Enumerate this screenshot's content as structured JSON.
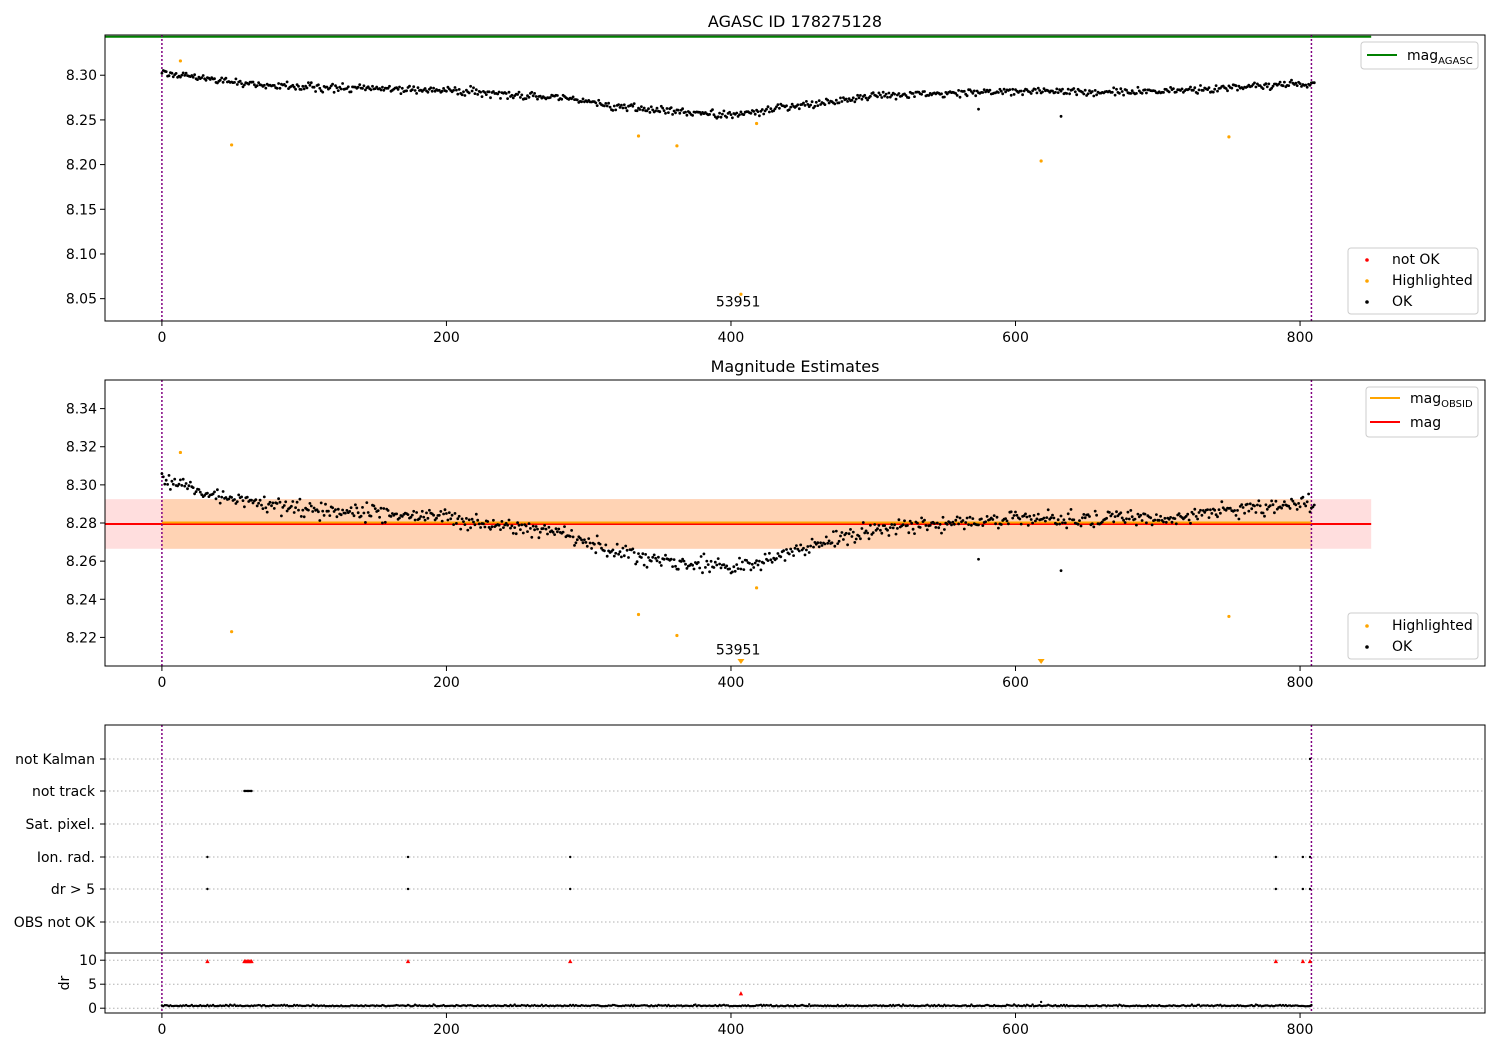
{
  "chart_data": [
    {
      "type": "scatter",
      "title": "AGASC ID 178275128",
      "xlim": [
        -40,
        930
      ],
      "ylim": [
        8.025,
        8.345
      ],
      "xticks": [
        0,
        200,
        400,
        600,
        800
      ],
      "yticks": [
        8.05,
        8.1,
        8.15,
        8.2,
        8.25,
        8.3
      ],
      "x_range": [
        0,
        810
      ],
      "mag_agasc": 8.343,
      "mag_agasc_span": [
        -40,
        850
      ],
      "obs_boundaries": [
        0,
        808
      ],
      "annotation": {
        "text": "53951",
        "x": 405,
        "y": 8.041
      },
      "legend_lines": [
        {
          "label": "mag",
          "sub": "AGASC",
          "color": "#008000"
        }
      ],
      "legend_points": [
        {
          "label": "not OK",
          "color": "#ff0000"
        },
        {
          "label": "Highlighted",
          "color": "#ffa500"
        },
        {
          "label": "OK",
          "color": "#000000"
        }
      ],
      "trend": [
        [
          0,
          8.303
        ],
        [
          50,
          8.292
        ],
        [
          100,
          8.287
        ],
        [
          200,
          8.283
        ],
        [
          280,
          8.275
        ],
        [
          330,
          8.263
        ],
        [
          400,
          8.256
        ],
        [
          460,
          8.268
        ],
        [
          500,
          8.277
        ],
        [
          600,
          8.282
        ],
        [
          700,
          8.282
        ],
        [
          808,
          8.291
        ]
      ],
      "noise": 0.0045,
      "highlighted": [
        [
          13,
          8.316
        ],
        [
          49,
          8.222
        ],
        [
          335,
          8.232
        ],
        [
          362,
          8.221
        ],
        [
          407,
          8.055
        ],
        [
          418,
          8.246
        ],
        [
          618,
          8.204
        ],
        [
          750,
          8.231
        ]
      ],
      "outliers_ok": [
        [
          574,
          8.262
        ],
        [
          632,
          8.254
        ]
      ]
    },
    {
      "type": "scatter",
      "title": "Magnitude Estimates",
      "xlim": [
        -40,
        930
      ],
      "ylim": [
        8.205,
        8.355
      ],
      "xticks": [
        0,
        200,
        400,
        600,
        800
      ],
      "yticks": [
        8.22,
        8.24,
        8.26,
        8.28,
        8.3,
        8.32,
        8.34
      ],
      "x_range": [
        0,
        810
      ],
      "mag": 8.2795,
      "mag_band": [
        8.2665,
        8.2925
      ],
      "mag_span": [
        -40,
        850
      ],
      "mag_obsid": 8.2795,
      "mag_obsid_band": [
        8.2665,
        8.2925
      ],
      "mag_obsid_span": [
        0,
        808
      ],
      "obs_boundaries": [
        0,
        808
      ],
      "annotation": {
        "text": "53951",
        "x": 405,
        "y": 8.211
      },
      "below_markers": [
        407,
        618
      ],
      "legend_lines": [
        {
          "label": "mag",
          "sub": "OBSID",
          "color": "#ffa500"
        },
        {
          "label": "mag",
          "sub": "",
          "color": "#ff0000"
        }
      ],
      "legend_points": [
        {
          "label": "Highlighted",
          "color": "#ffa500"
        },
        {
          "label": "OK",
          "color": "#000000"
        }
      ],
      "trend": [
        [
          0,
          8.303
        ],
        [
          50,
          8.292
        ],
        [
          100,
          8.287
        ],
        [
          200,
          8.283
        ],
        [
          280,
          8.275
        ],
        [
          330,
          8.263
        ],
        [
          400,
          8.256
        ],
        [
          460,
          8.268
        ],
        [
          500,
          8.277
        ],
        [
          600,
          8.282
        ],
        [
          700,
          8.282
        ],
        [
          808,
          8.291
        ]
      ],
      "noise": 0.0045,
      "highlighted": [
        [
          13,
          8.317
        ],
        [
          49,
          8.223
        ],
        [
          335,
          8.232
        ],
        [
          362,
          8.221
        ],
        [
          418,
          8.246
        ],
        [
          750,
          8.231
        ]
      ],
      "outliers_ok": [
        [
          574,
          8.261
        ],
        [
          632,
          8.255
        ]
      ]
    },
    {
      "type": "scatter",
      "title": "",
      "xlim": [
        -40,
        930
      ],
      "xticks": [
        0,
        200,
        400,
        600,
        800
      ],
      "obs_boundaries": [
        0,
        808
      ],
      "flag_categories": [
        "not Kalman",
        "not track",
        "Sat. pixel.",
        "Ion. rad.",
        "dr > 5",
        "OBS not OK"
      ],
      "flags": {
        "not track": [
          58,
          59,
          60,
          61,
          62,
          63
        ],
        "Ion. rad.": [
          32,
          173,
          287,
          783,
          802,
          807
        ],
        "dr > 5": [
          32,
          173,
          287,
          783,
          802,
          807
        ],
        "not Kalman": [
          807
        ]
      },
      "dr_ylabel": "dr",
      "dr_ylim": [
        -1,
        11.5
      ],
      "dr_yticks": [
        0,
        5,
        10
      ],
      "dr_ok_level": 0.4,
      "dr_noise": 0.3,
      "dr_red": [
        [
          32,
          9.8
        ],
        [
          58,
          9.8
        ],
        [
          59,
          9.8
        ],
        [
          60,
          9.8
        ],
        [
          61,
          9.8
        ],
        [
          62,
          9.8
        ],
        [
          63,
          9.8
        ],
        [
          173,
          9.8
        ],
        [
          287,
          9.8
        ],
        [
          407,
          3.1
        ],
        [
          783,
          9.8
        ],
        [
          802,
          9.8
        ],
        [
          807,
          9.8
        ]
      ],
      "dr_black_extra": [
        [
          618,
          1.3
        ]
      ]
    }
  ],
  "colors": {
    "ok": "#000000",
    "highlighted": "#ffa500",
    "not_ok": "#ff0000",
    "agasc_line": "#008000",
    "mag_line": "#ff0000",
    "obsid_line": "#ffa500",
    "mag_band": "#ffdede",
    "obsid_band": "#ffd3b4",
    "boundary": "#800080",
    "grid": "#b0b0b0"
  }
}
